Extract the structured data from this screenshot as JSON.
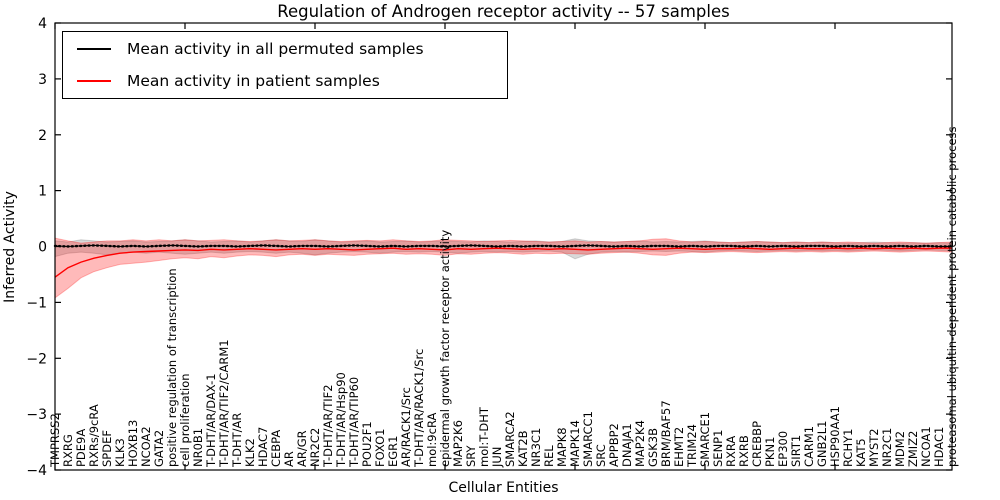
{
  "figure": {
    "title": "Regulation of Androgen receptor activity -- 57 samples",
    "xlabel": "Cellular Entities",
    "ylabel": "Inferred Activity"
  },
  "legend": {
    "items": [
      {
        "label": "Mean activity in all permuted samples",
        "color": "#000000"
      },
      {
        "label": "Mean activity in patient samples",
        "color": "#ff0000"
      }
    ]
  },
  "chart_data": {
    "type": "line",
    "title": "Regulation of Androgen receptor activity -- 57 samples",
    "xlabel": "Cellular Entities",
    "ylabel": "Inferred Activity",
    "ylim": [
      -4,
      4
    ],
    "yticks": [
      -4,
      -3,
      -2,
      -1,
      0,
      1,
      2,
      3,
      4
    ],
    "grid": false,
    "legend_position": "upper left",
    "x_major_tick_every": 10,
    "categories": [
      "TMPRSS2",
      "RXRG",
      "PDE9A",
      "RXRs/9cRA",
      "SPDEF",
      "KLK3",
      "HOXB13",
      "NCOA2",
      "GATA2",
      "positive regulation of transcription",
      "cell proliferation",
      "NR0B1",
      "T-DHT/AR/DAX-1",
      "T-DHT/AR/TIF2/CARM1",
      "T-DHT/AR",
      "KLK2",
      "HDAC7",
      "CEBPA",
      "AR",
      "AR/GR",
      "NR2C2",
      "T-DHT/AR/TIF2",
      "T-DHT/AR/Hsp90",
      "T-DHT/AR/TIP60",
      "POU2F1",
      "FOXO1",
      "EGR1",
      "AR/RACK1/Src",
      "T-DHT/AR/RACK1/Src",
      "mol:9cRA",
      "epidermal growth factor receptor activity",
      "MAP2K6",
      "SRY",
      "mol:T-DHT",
      "JUN",
      "SMARCA2",
      "KAT2B",
      "NR3C1",
      "REL",
      "MAPK8",
      "MAPK14",
      "SMARCC1",
      "SRC",
      "APPBP2",
      "DNAJA1",
      "MAP2K4",
      "GSK3B",
      "BRM/BAF57",
      "EHMT2",
      "TRIM24",
      "SMARCE1",
      "SENP1",
      "RXRA",
      "RXRB",
      "CREBBP",
      "PKN1",
      "EP300",
      "SIRT1",
      "CARM1",
      "GNB2L1",
      "HSP90AA1",
      "RCHY1",
      "KAT5",
      "MYST2",
      "NR2C1",
      "MDM2",
      "ZMIZ2",
      "NCOA1",
      "HDAC1",
      "proteasomal ubiquitin-dependent protein catabolic process"
    ],
    "series": [
      {
        "name": "Mean activity in all permuted samples",
        "color": "#000000",
        "band_color": "rgba(0,0,0,0.15)",
        "values": [
          0.01,
          0.0,
          0.01,
          0.02,
          0.01,
          0.0,
          0.01,
          0.0,
          0.01,
          0.02,
          0.01,
          0.0,
          0.01,
          0.01,
          0.0,
          0.01,
          0.02,
          0.01,
          0.0,
          0.01,
          0.01,
          0.0,
          0.01,
          0.02,
          0.01,
          0.0,
          0.01,
          0.0,
          0.01,
          0.01,
          0.0,
          0.01,
          0.02,
          0.01,
          0.0,
          0.01,
          0.0,
          0.01,
          0.01,
          0.0,
          0.01,
          0.02,
          0.01,
          0.0,
          0.01,
          0.0,
          0.01,
          0.01,
          0.0,
          0.01,
          0.0,
          0.01,
          0.01,
          0.0,
          0.01,
          0.0,
          0.01,
          0.0,
          0.01,
          0.01,
          0.0,
          0.01,
          0.0,
          0.01,
          0.0,
          0.01,
          0.0,
          0.01,
          0.0,
          0.0
        ],
        "band_upper": [
          0.1,
          0.08,
          0.12,
          0.1,
          0.08,
          0.09,
          0.1,
          0.08,
          0.09,
          0.1,
          0.12,
          0.1,
          0.08,
          0.09,
          0.1,
          0.08,
          0.1,
          0.12,
          0.1,
          0.09,
          0.12,
          0.1,
          0.08,
          0.09,
          0.1,
          0.08,
          0.09,
          0.1,
          0.08,
          0.09,
          0.1,
          0.09,
          0.08,
          0.1,
          0.09,
          0.08,
          0.09,
          0.1,
          0.08,
          0.09,
          0.14,
          0.1,
          0.09,
          0.08,
          0.09,
          0.1,
          0.08,
          0.09,
          0.08,
          0.09,
          0.1,
          0.08,
          0.07,
          0.08,
          0.09,
          0.08,
          0.07,
          0.08,
          0.07,
          0.08,
          0.07,
          0.06,
          0.07,
          0.08,
          0.07,
          0.06,
          0.07,
          0.06,
          0.07,
          0.06
        ],
        "band_lower": [
          -0.18,
          -0.12,
          -0.1,
          -0.12,
          -0.15,
          -0.12,
          -0.1,
          -0.12,
          -0.1,
          -0.12,
          -0.14,
          -0.12,
          -0.1,
          -0.12,
          -0.1,
          -0.09,
          -0.1,
          -0.12,
          -0.1,
          -0.12,
          -0.15,
          -0.12,
          -0.1,
          -0.09,
          -0.1,
          -0.12,
          -0.1,
          -0.09,
          -0.1,
          -0.09,
          -0.1,
          -0.12,
          -0.1,
          -0.09,
          -0.1,
          -0.09,
          -0.1,
          -0.09,
          -0.08,
          -0.1,
          -0.22,
          -0.14,
          -0.1,
          -0.09,
          -0.1,
          -0.09,
          -0.08,
          -0.09,
          -0.08,
          -0.09,
          -0.1,
          -0.08,
          -0.07,
          -0.08,
          -0.09,
          -0.08,
          -0.07,
          -0.08,
          -0.07,
          -0.08,
          -0.07,
          -0.08,
          -0.07,
          -0.06,
          -0.07,
          -0.08,
          -0.07,
          -0.06,
          -0.07,
          -0.08
        ]
      },
      {
        "name": "Mean activity in patient samples",
        "color": "#ff0000",
        "band_color": "rgba(255,0,0,0.27)",
        "values": [
          -0.55,
          -0.38,
          -0.28,
          -0.21,
          -0.16,
          -0.12,
          -0.1,
          -0.09,
          -0.08,
          -0.07,
          -0.06,
          -0.07,
          -0.05,
          -0.06,
          -0.05,
          -0.04,
          -0.05,
          -0.06,
          -0.05,
          -0.04,
          -0.05,
          -0.04,
          -0.05,
          -0.06,
          -0.05,
          -0.04,
          -0.03,
          -0.05,
          -0.04,
          -0.05,
          -0.06,
          -0.04,
          -0.05,
          -0.04,
          -0.03,
          -0.04,
          -0.05,
          -0.04,
          -0.05,
          -0.04,
          -0.05,
          -0.06,
          -0.05,
          -0.04,
          -0.03,
          -0.04,
          -0.05,
          -0.04,
          -0.03,
          -0.04,
          -0.05,
          -0.04,
          -0.04,
          -0.03,
          -0.04,
          -0.05,
          -0.04,
          -0.03,
          -0.04,
          -0.04,
          -0.03,
          -0.04,
          -0.03,
          -0.04,
          -0.03,
          -0.04,
          -0.03,
          -0.04,
          -0.03,
          -0.03
        ],
        "band_upper": [
          0.15,
          0.1,
          0.06,
          0.08,
          0.1,
          0.1,
          0.12,
          0.1,
          0.12,
          0.1,
          0.12,
          0.1,
          0.11,
          0.12,
          0.1,
          0.09,
          0.1,
          0.12,
          0.1,
          0.11,
          0.12,
          0.1,
          0.09,
          0.1,
          0.11,
          0.1,
          0.12,
          0.1,
          0.09,
          0.1,
          0.12,
          0.11,
          0.1,
          0.09,
          0.1,
          0.11,
          0.1,
          0.09,
          0.08,
          0.09,
          0.1,
          0.08,
          0.09,
          0.08,
          0.09,
          0.1,
          0.13,
          0.14,
          0.1,
          0.08,
          0.09,
          0.08,
          0.07,
          0.08,
          0.09,
          0.08,
          0.07,
          0.08,
          0.07,
          0.08,
          0.07,
          0.08,
          0.07,
          0.06,
          0.07,
          0.08,
          0.07,
          0.06,
          0.07,
          0.08
        ],
        "band_lower": [
          -0.92,
          -0.75,
          -0.56,
          -0.45,
          -0.38,
          -0.32,
          -0.3,
          -0.28,
          -0.25,
          -0.22,
          -0.2,
          -0.22,
          -0.18,
          -0.2,
          -0.17,
          -0.15,
          -0.16,
          -0.18,
          -0.15,
          -0.14,
          -0.16,
          -0.14,
          -0.15,
          -0.16,
          -0.14,
          -0.13,
          -0.12,
          -0.14,
          -0.13,
          -0.14,
          -0.16,
          -0.13,
          -0.14,
          -0.12,
          -0.11,
          -0.12,
          -0.14,
          -0.12,
          -0.13,
          -0.12,
          -0.13,
          -0.14,
          -0.12,
          -0.11,
          -0.1,
          -0.12,
          -0.15,
          -0.16,
          -0.12,
          -0.1,
          -0.11,
          -0.1,
          -0.09,
          -0.1,
          -0.11,
          -0.1,
          -0.09,
          -0.1,
          -0.09,
          -0.1,
          -0.09,
          -0.1,
          -0.09,
          -0.08,
          -0.09,
          -0.1,
          -0.09,
          -0.08,
          -0.09,
          -0.1
        ]
      }
    ]
  }
}
